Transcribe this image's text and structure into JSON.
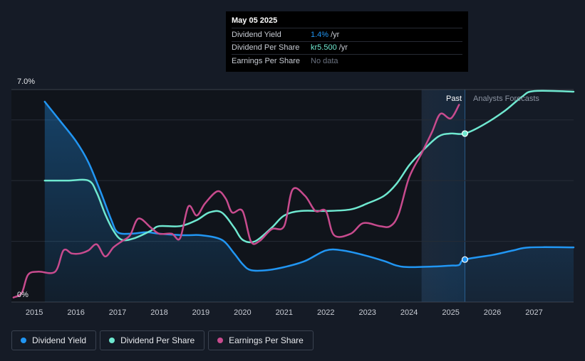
{
  "tooltip": {
    "date": "May 05 2025",
    "rows": [
      {
        "label": "Dividend Yield",
        "value": "1.4%",
        "unit": " /yr",
        "color": "#2196f3"
      },
      {
        "label": "Dividend Per Share",
        "value": "kr5.500",
        "unit": " /yr",
        "color": "#6fe8d0"
      },
      {
        "label": "Earnings Per Share",
        "value": "No data",
        "unit": "",
        "color": "#6b7280"
      }
    ]
  },
  "regions": {
    "past_label": "Past",
    "forecast_label": "Analysts Forecasts"
  },
  "legend": [
    {
      "label": "Dividend Yield",
      "color": "#2196f3"
    },
    {
      "label": "Dividend Per Share",
      "color": "#6fe8d0"
    },
    {
      "label": "Earnings Per Share",
      "color": "#c84b8e"
    }
  ],
  "chart_data": {
    "type": "line",
    "title": "",
    "xlabel": "",
    "ylabel": "",
    "x_ticks": [
      "2015",
      "2016",
      "2017",
      "2018",
      "2019",
      "2020",
      "2021",
      "2022",
      "2023",
      "2024",
      "2025",
      "2026",
      "2027"
    ],
    "y_tick_labels": [
      "0%",
      "7.0%"
    ],
    "xlim": [
      2014.45,
      2027.95
    ],
    "ylim": [
      0,
      7.0
    ],
    "past_start": 2024.3,
    "now": 2025.34,
    "series": [
      {
        "name": "Dividend Yield",
        "color": "#2196f3",
        "fill": true,
        "points": [
          [
            2015.25,
            6.6
          ],
          [
            2015.6,
            6.0
          ],
          [
            2016.0,
            5.3
          ],
          [
            2016.3,
            4.6
          ],
          [
            2016.6,
            3.6
          ],
          [
            2016.85,
            2.7
          ],
          [
            2017.0,
            2.3
          ],
          [
            2017.3,
            2.25
          ],
          [
            2017.7,
            2.3
          ],
          [
            2018.0,
            2.25
          ],
          [
            2018.6,
            2.2
          ],
          [
            2019.0,
            2.2
          ],
          [
            2019.5,
            2.05
          ],
          [
            2019.8,
            1.6
          ],
          [
            2020.0,
            1.25
          ],
          [
            2020.2,
            1.05
          ],
          [
            2020.6,
            1.05
          ],
          [
            2021.0,
            1.15
          ],
          [
            2021.5,
            1.35
          ],
          [
            2022.0,
            1.7
          ],
          [
            2022.4,
            1.7
          ],
          [
            2022.9,
            1.55
          ],
          [
            2023.4,
            1.35
          ],
          [
            2023.7,
            1.2
          ],
          [
            2024.0,
            1.15
          ],
          [
            2024.6,
            1.17
          ],
          [
            2025.0,
            1.2
          ],
          [
            2025.2,
            1.22
          ],
          [
            2025.34,
            1.4
          ],
          [
            2026.0,
            1.55
          ],
          [
            2026.5,
            1.7
          ],
          [
            2026.9,
            1.8
          ],
          [
            2027.95,
            1.8
          ]
        ]
      },
      {
        "name": "Dividend Per Share",
        "color": "#6fe8d0",
        "fill": false,
        "points": [
          [
            2015.25,
            4.0
          ],
          [
            2015.8,
            4.0
          ],
          [
            2016.3,
            4.0
          ],
          [
            2016.5,
            3.6
          ],
          [
            2016.7,
            2.9
          ],
          [
            2016.9,
            2.35
          ],
          [
            2017.1,
            2.05
          ],
          [
            2017.4,
            2.1
          ],
          [
            2017.8,
            2.35
          ],
          [
            2018.0,
            2.5
          ],
          [
            2018.5,
            2.5
          ],
          [
            2018.9,
            2.7
          ],
          [
            2019.2,
            2.95
          ],
          [
            2019.5,
            2.95
          ],
          [
            2019.8,
            2.45
          ],
          [
            2020.0,
            2.05
          ],
          [
            2020.3,
            2.0
          ],
          [
            2020.7,
            2.45
          ],
          [
            2021.0,
            2.85
          ],
          [
            2021.4,
            3.0
          ],
          [
            2022.0,
            3.0
          ],
          [
            2022.6,
            3.05
          ],
          [
            2023.0,
            3.25
          ],
          [
            2023.4,
            3.5
          ],
          [
            2023.7,
            3.9
          ],
          [
            2024.0,
            4.5
          ],
          [
            2024.3,
            4.95
          ],
          [
            2024.7,
            5.45
          ],
          [
            2025.0,
            5.55
          ],
          [
            2025.34,
            5.55
          ],
          [
            2025.8,
            5.85
          ],
          [
            2026.3,
            6.3
          ],
          [
            2026.7,
            6.75
          ],
          [
            2027.0,
            6.95
          ],
          [
            2027.95,
            6.93
          ]
        ]
      },
      {
        "name": "Earnings Per Share",
        "color": "#c84b8e",
        "fill": false,
        "points": [
          [
            2014.5,
            0.15
          ],
          [
            2014.7,
            0.3
          ],
          [
            2014.85,
            0.9
          ],
          [
            2015.1,
            1.0
          ],
          [
            2015.5,
            1.0
          ],
          [
            2015.7,
            1.7
          ],
          [
            2015.9,
            1.6
          ],
          [
            2016.1,
            1.6
          ],
          [
            2016.3,
            1.7
          ],
          [
            2016.5,
            1.9
          ],
          [
            2016.7,
            1.5
          ],
          [
            2016.9,
            1.8
          ],
          [
            2017.1,
            2.0
          ],
          [
            2017.3,
            2.2
          ],
          [
            2017.5,
            2.75
          ],
          [
            2017.8,
            2.45
          ],
          [
            2018.0,
            2.25
          ],
          [
            2018.3,
            2.25
          ],
          [
            2018.5,
            2.1
          ],
          [
            2018.7,
            3.15
          ],
          [
            2018.9,
            2.85
          ],
          [
            2019.1,
            3.25
          ],
          [
            2019.4,
            3.65
          ],
          [
            2019.6,
            3.4
          ],
          [
            2019.75,
            2.95
          ],
          [
            2020.0,
            3.0
          ],
          [
            2020.2,
            2.0
          ],
          [
            2020.4,
            2.0
          ],
          [
            2020.7,
            2.4
          ],
          [
            2021.0,
            2.5
          ],
          [
            2021.2,
            3.7
          ],
          [
            2021.5,
            3.5
          ],
          [
            2021.75,
            3.0
          ],
          [
            2022.0,
            3.0
          ],
          [
            2022.2,
            2.2
          ],
          [
            2022.6,
            2.25
          ],
          [
            2022.9,
            2.6
          ],
          [
            2023.3,
            2.5
          ],
          [
            2023.55,
            2.5
          ],
          [
            2023.75,
            2.9
          ],
          [
            2024.0,
            4.1
          ],
          [
            2024.3,
            4.9
          ],
          [
            2024.55,
            5.6
          ],
          [
            2024.75,
            6.2
          ],
          [
            2025.0,
            6.05
          ],
          [
            2025.2,
            6.5
          ]
        ]
      }
    ],
    "markers": [
      {
        "series": "Dividend Yield",
        "x": 2025.34,
        "y": 1.4
      },
      {
        "series": "Dividend Per Share",
        "x": 2025.34,
        "y": 5.55
      }
    ]
  }
}
